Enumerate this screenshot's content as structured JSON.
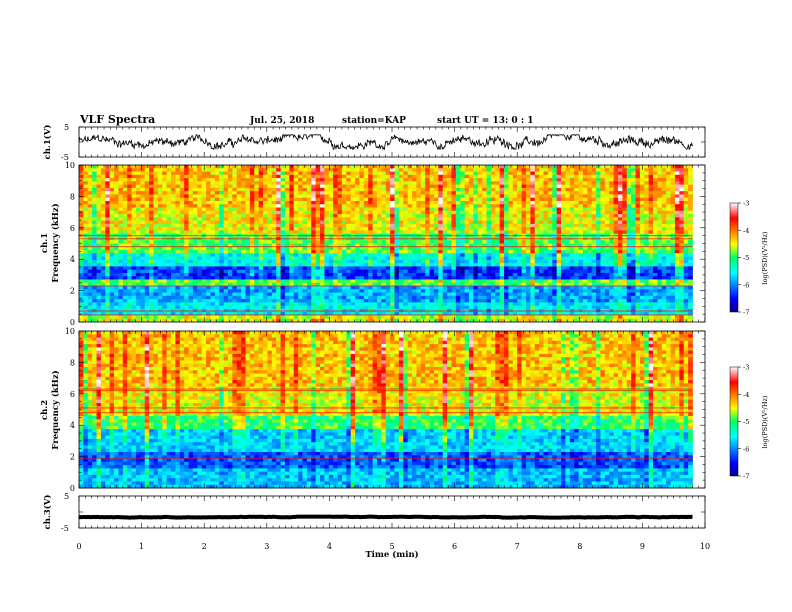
{
  "header": {
    "title": "VLF Spectra",
    "date": "Jul. 25, 2018",
    "station": "station=KAP",
    "start": "start UT = 13: 0 : 1"
  },
  "chart_data": [
    {
      "type": "line",
      "name": "ch1-waveform",
      "ylabel": "ch.1(V)",
      "ylim": [
        -5,
        5
      ],
      "yticks": [
        "5",
        "-5"
      ],
      "xlim": [
        0,
        10
      ],
      "x_extent": 9.8,
      "level": 0,
      "amplitude": 2.4,
      "grid": false
    },
    {
      "type": "heatmap",
      "name": "ch1-spectrogram",
      "ylabel_line1": "ch.1",
      "ylabel_line2": "Frequency (kHz)",
      "ylim": [
        0,
        10
      ],
      "yticks": [
        "0",
        "2",
        "4",
        "6",
        "8",
        "10"
      ],
      "xlim": [
        0,
        10
      ],
      "x_extent": 9.8,
      "colorbar": {
        "label": "log(PSD)(V²/Hz)",
        "range": [
          -7,
          -3
        ],
        "ticks": [
          "-3",
          "-4",
          "-5",
          "-6",
          "-7"
        ]
      },
      "bands": [
        {
          "from": 0,
          "to": 0.5,
          "level": -4.6
        },
        {
          "from": 0.5,
          "to": 1.2,
          "level": -5.6
        },
        {
          "from": 1.2,
          "to": 2.2,
          "level": -5.9
        },
        {
          "from": 2.2,
          "to": 2.7,
          "level": -4.9
        },
        {
          "from": 2.7,
          "to": 3.5,
          "level": -6.3
        },
        {
          "from": 3.5,
          "to": 4.4,
          "level": -5.5
        },
        {
          "from": 4.4,
          "to": 5.6,
          "level": -4.9
        },
        {
          "from": 5.6,
          "to": 7.2,
          "level": -4.5
        },
        {
          "from": 7.2,
          "to": 10,
          "level": -4.3
        }
      ],
      "lines_khz": [
        0.45,
        0.7,
        2.3,
        4.8,
        5.3,
        5.5
      ]
    },
    {
      "type": "heatmap",
      "name": "ch2-spectrogram",
      "ylabel_line1": "ch.2",
      "ylabel_line2": "Frequency (kHz)",
      "ylim": [
        0,
        10
      ],
      "yticks": [
        "0",
        "2",
        "4",
        "6",
        "8",
        "10"
      ],
      "xlim": [
        0,
        10
      ],
      "x_extent": 9.8,
      "colorbar": {
        "label": "log(PSD)(V²/Hz)",
        "range": [
          -7,
          -3
        ],
        "ticks": [
          "-3",
          "-4",
          "-5",
          "-6",
          "-7"
        ]
      },
      "bands": [
        {
          "from": 0,
          "to": 1.2,
          "level": -5.8
        },
        {
          "from": 1.2,
          "to": 2.2,
          "level": -6.2
        },
        {
          "from": 2.2,
          "to": 3.8,
          "level": -5.7
        },
        {
          "from": 3.8,
          "to": 4.6,
          "level": -5.0
        },
        {
          "from": 4.6,
          "to": 6.4,
          "level": -4.5
        },
        {
          "from": 6.4,
          "to": 10,
          "level": -4.3
        }
      ],
      "lines_khz": [
        1.9,
        4.8,
        5.1,
        6.2,
        6.3
      ]
    },
    {
      "type": "line",
      "name": "ch3-waveform",
      "ylabel": "ch.3(V)",
      "ylim": [
        -5,
        5
      ],
      "yticks": [
        "5",
        "-5"
      ],
      "xlim": [
        0,
        10
      ],
      "x_extent": 9.8,
      "level": -1.6,
      "amplitude": 0.15,
      "grid": false
    }
  ],
  "time_axis": {
    "label": "Time (min)",
    "ticks": [
      "0",
      "1",
      "2",
      "3",
      "4",
      "5",
      "6",
      "7",
      "8",
      "9",
      "10"
    ]
  }
}
